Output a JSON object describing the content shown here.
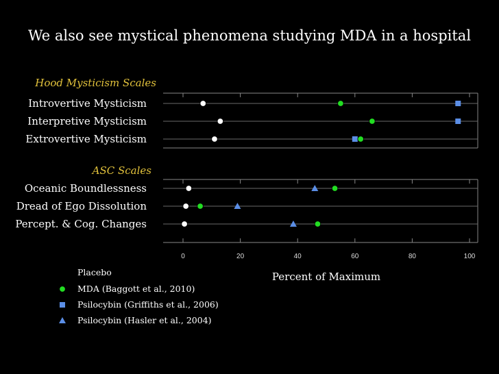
{
  "title": "We also see mystical phenomena studying MDA in a hospital",
  "chart_data": {
    "type": "scatter",
    "xlabel": "Percent of Maximum",
    "xlim": [
      0,
      100
    ],
    "xticks": [
      "0",
      "20",
      "40",
      "60",
      "80",
      "100"
    ],
    "legend": {
      "placement": "bottom-left",
      "items": [
        {
          "label": "Placebo",
          "color": "#ffffff",
          "shape": "circle"
        },
        {
          "label": "MDA (Baggott et al., 2010)",
          "color": "#22dd22",
          "shape": "circle"
        },
        {
          "label": "Psilocybin (Griffiths et al., 2006)",
          "color": "#5b8ee6",
          "shape": "square"
        },
        {
          "label": "Psilocybin (Hasler et al., 2004)",
          "color": "#5b8ee6",
          "shape": "triangle"
        }
      ]
    },
    "panels": [
      {
        "name": "Hood Mysticism Scales",
        "rows": [
          {
            "label": "Introvertive Mysticism",
            "placebo": 7,
            "mda": 55,
            "psilocybin_griffiths": 96
          },
          {
            "label": "Interpretive Mysticism",
            "placebo": 13,
            "mda": 66,
            "psilocybin_griffiths": 96
          },
          {
            "label": "Extrovertive Mysticism",
            "placebo": 11,
            "mda": 62,
            "psilocybin_griffiths": 60
          }
        ]
      },
      {
        "name": "ASC Scales",
        "rows": [
          {
            "label": "Oceanic Boundlessness",
            "placebo": 2,
            "mda": 53,
            "psilocybin_hasler": 46
          },
          {
            "label": "Dread of Ego Dissolution",
            "placebo": 1,
            "mda": 6,
            "psilocybin_hasler": 19
          },
          {
            "label": "Percept. & Cog. Changes",
            "placebo": 0.5,
            "mda": 47,
            "psilocybin_hasler": 38.5
          }
        ]
      }
    ]
  }
}
